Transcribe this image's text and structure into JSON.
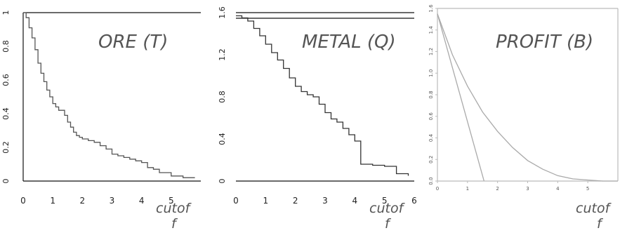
{
  "chart_data": [
    {
      "type": "line",
      "title": "ORE (T)",
      "xlabel_lines": [
        "cutof",
        "f"
      ],
      "xlim": [
        0,
        6
      ],
      "ylim": [
        0,
        1
      ],
      "x_ticks": [
        "0",
        "1",
        "2",
        "3",
        "4",
        "5"
      ],
      "y_ticks": [
        "0",
        "0.2",
        "0.4",
        "0.6",
        "0.8",
        "1"
      ],
      "colors": {
        "line": "#555555",
        "axis": "#111111"
      },
      "series": [
        {
          "step": true,
          "x": [
            0,
            0.1,
            0.2,
            0.3,
            0.4,
            0.5,
            0.6,
            0.7,
            0.8,
            0.9,
            1.0,
            1.1,
            1.2,
            1.3,
            1.4,
            1.5,
            1.6,
            1.7,
            1.8,
            1.9,
            2.0,
            2.2,
            2.4,
            2.6,
            2.8,
            3.0,
            3.2,
            3.4,
            3.6,
            3.8,
            4.0,
            4.2,
            4.4,
            4.6,
            5.0,
            5.4,
            5.8
          ],
          "y": [
            1.0,
            0.97,
            0.91,
            0.85,
            0.78,
            0.7,
            0.64,
            0.59,
            0.54,
            0.5,
            0.46,
            0.44,
            0.42,
            0.42,
            0.39,
            0.35,
            0.32,
            0.29,
            0.27,
            0.26,
            0.25,
            0.24,
            0.23,
            0.21,
            0.19,
            0.16,
            0.15,
            0.14,
            0.13,
            0.12,
            0.11,
            0.08,
            0.07,
            0.05,
            0.03,
            0.02,
            0.02
          ]
        }
      ]
    },
    {
      "type": "line",
      "title": "METAL (Q)",
      "xlabel_lines": [
        "cutof",
        "f"
      ],
      "xlim": [
        0,
        6
      ],
      "ylim": [
        0,
        1.6
      ],
      "x_ticks": [
        "0",
        "1",
        "2",
        "3",
        "4",
        "5",
        "6"
      ],
      "y_ticks": [
        "0",
        "0.4",
        "0.8",
        "1.2",
        "1.6"
      ],
      "colors": {
        "line": "#333333",
        "axis": "#111111"
      },
      "series": [
        {
          "step": true,
          "x": [
            0,
            0.2,
            0.4,
            0.6,
            0.8,
            1.0,
            1.2,
            1.4,
            1.6,
            1.8,
            2.0,
            2.2,
            2.4,
            2.6,
            2.8,
            3.0,
            3.2,
            3.4,
            3.6,
            3.8,
            4.0,
            4.2,
            4.6,
            5.0,
            5.4,
            5.8
          ],
          "y": [
            1.57,
            1.55,
            1.52,
            1.45,
            1.38,
            1.3,
            1.22,
            1.15,
            1.07,
            0.98,
            0.9,
            0.85,
            0.82,
            0.8,
            0.73,
            0.65,
            0.59,
            0.56,
            0.5,
            0.44,
            0.38,
            0.16,
            0.15,
            0.14,
            0.07,
            0.05
          ]
        }
      ]
    },
    {
      "type": "line",
      "title": "PROFIT (B)",
      "xlabel_lines": [
        "cutof",
        "f"
      ],
      "xlim": [
        0,
        6
      ],
      "ylim": [
        0,
        1.6
      ],
      "x_ticks": [
        "0",
        "1",
        "2",
        "3",
        "4",
        "5"
      ],
      "y_ticks": [
        "0.0",
        "0.2",
        "0.4",
        "0.6",
        "0.8",
        "1.0",
        "1.2",
        "1.4",
        "1.6"
      ],
      "colors": {
        "line": "#aaaaaa",
        "axis": "#bbbbbb"
      },
      "series": [
        {
          "x": [
            0,
            0.5,
            1.0,
            1.5,
            2.0,
            2.5,
            3.0,
            3.5,
            4.0,
            4.5,
            5.0,
            5.5,
            6.0
          ],
          "y": [
            1.55,
            1.17,
            0.88,
            0.64,
            0.46,
            0.31,
            0.19,
            0.11,
            0.05,
            0.02,
            0.01,
            0.0,
            0.0
          ]
        },
        {
          "x": [
            0,
            1.55
          ],
          "y": [
            1.55,
            0
          ]
        }
      ]
    }
  ]
}
